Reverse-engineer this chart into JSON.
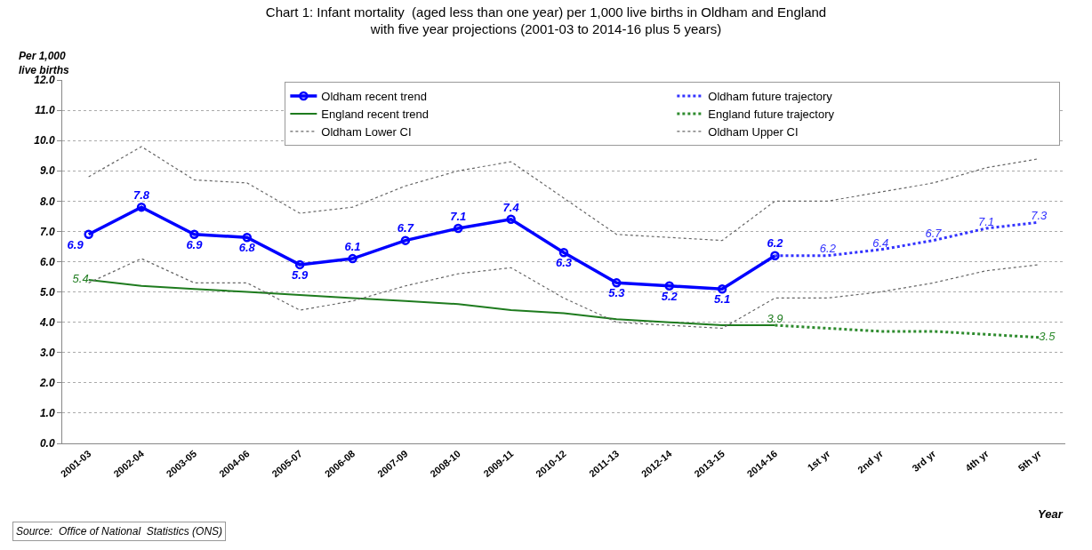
{
  "chart_data": {
    "type": "line",
    "title": "Chart 1: Infant mortality  (aged less than one year) per 1,000 live births in Oldham and England\nwith five year projections (2001-03 to 2014-16 plus 5 years)",
    "ylabel": "Per 1,000\nlive births",
    "xlabel": "Year",
    "categories": [
      "2001-03",
      "2002-04",
      "2003-05",
      "2004-06",
      "2005-07",
      "2006-08",
      "2007-09",
      "2008-10",
      "2009-11",
      "2010-12",
      "2011-13",
      "2012-14",
      "2013-15",
      "2014-16",
      "1st yr",
      "2nd yr",
      "3rd yr",
      "4th yr",
      "5th yr"
    ],
    "series": [
      {
        "name": "Oldham recent trend",
        "color": "#0000ff",
        "marker": "circle",
        "line_style": "solid",
        "values": [
          6.9,
          7.8,
          6.9,
          6.8,
          5.9,
          6.1,
          6.7,
          7.1,
          7.4,
          6.3,
          5.3,
          5.2,
          5.1,
          6.2,
          null,
          null,
          null,
          null,
          null
        ],
        "value_labels": [
          "6.9",
          "7.8",
          "6.9",
          "6.8",
          "5.9",
          "6.1",
          "6.7",
          "7.1",
          "7.4",
          "6.3",
          "5.3",
          "5.2",
          "5.1",
          "6.2",
          null,
          null,
          null,
          null,
          null
        ]
      },
      {
        "name": "Oldham future trajectory",
        "color": "#3333ff",
        "marker": "none",
        "line_style": "dotted",
        "values": [
          null,
          null,
          null,
          null,
          null,
          null,
          null,
          null,
          null,
          null,
          null,
          null,
          null,
          6.2,
          6.2,
          6.4,
          6.7,
          7.1,
          7.3
        ],
        "value_labels": [
          null,
          null,
          null,
          null,
          null,
          null,
          null,
          null,
          null,
          null,
          null,
          null,
          null,
          null,
          "6.2",
          "6.4",
          "6.7",
          "7.1",
          "7.3"
        ]
      },
      {
        "name": "England recent trend",
        "color": "#1e7b1e",
        "marker": "none",
        "line_style": "solid",
        "values": [
          5.4,
          5.2,
          5.1,
          5.0,
          4.9,
          4.8,
          4.7,
          4.6,
          4.4,
          4.3,
          4.1,
          4.0,
          3.9,
          3.9,
          null,
          null,
          null,
          null,
          null
        ],
        "value_labels": [
          "5.4",
          null,
          null,
          null,
          null,
          null,
          null,
          null,
          null,
          null,
          null,
          null,
          null,
          "3.9",
          null,
          null,
          null,
          null,
          null
        ]
      },
      {
        "name": "England future trajectory",
        "color": "#2e8b2e",
        "marker": "none",
        "line_style": "dotted",
        "values": [
          null,
          null,
          null,
          null,
          null,
          null,
          null,
          null,
          null,
          null,
          null,
          null,
          null,
          3.9,
          3.8,
          3.7,
          3.7,
          3.6,
          3.5
        ],
        "value_labels": [
          null,
          null,
          null,
          null,
          null,
          null,
          null,
          null,
          null,
          null,
          null,
          null,
          null,
          null,
          null,
          null,
          null,
          null,
          "3.5"
        ]
      },
      {
        "name": "Oldham Lower CI",
        "color": "#666666",
        "marker": "none",
        "line_style": "dotted",
        "values": [
          5.3,
          6.1,
          5.3,
          5.3,
          4.4,
          4.7,
          5.2,
          5.6,
          5.8,
          4.8,
          4.0,
          3.9,
          3.8,
          4.8,
          4.8,
          5.0,
          5.3,
          5.7,
          5.9
        ]
      },
      {
        "name": "Oldham Upper CI",
        "color": "#666666",
        "marker": "none",
        "line_style": "dotted",
        "values": [
          8.8,
          9.8,
          8.7,
          8.6,
          7.6,
          7.8,
          8.5,
          9.0,
          9.3,
          8.1,
          6.9,
          6.8,
          6.7,
          8.0,
          8.0,
          8.3,
          8.6,
          9.1,
          9.4
        ]
      }
    ],
    "ylim": [
      0,
      12
    ],
    "yticks": [
      {
        "value": 0,
        "label": "0.0"
      },
      {
        "value": 1,
        "label": "1.0"
      },
      {
        "value": 2,
        "label": "2.0"
      },
      {
        "value": 3,
        "label": "3.0"
      },
      {
        "value": 4,
        "label": "4.0"
      },
      {
        "value": 5,
        "label": "5.0"
      },
      {
        "value": 6,
        "label": "6.0"
      },
      {
        "value": 7,
        "label": "7.0"
      },
      {
        "value": 8,
        "label": "8.0"
      },
      {
        "value": 9,
        "label": "9.0"
      },
      {
        "value": 10,
        "label": "10.0"
      },
      {
        "value": 11,
        "label": "11.0"
      },
      {
        "value": 12,
        "label": "12.0"
      }
    ],
    "grid": "y",
    "legend": "top right",
    "annotations": [
      "Source:  Office of National  Statistics (ONS)"
    ]
  }
}
